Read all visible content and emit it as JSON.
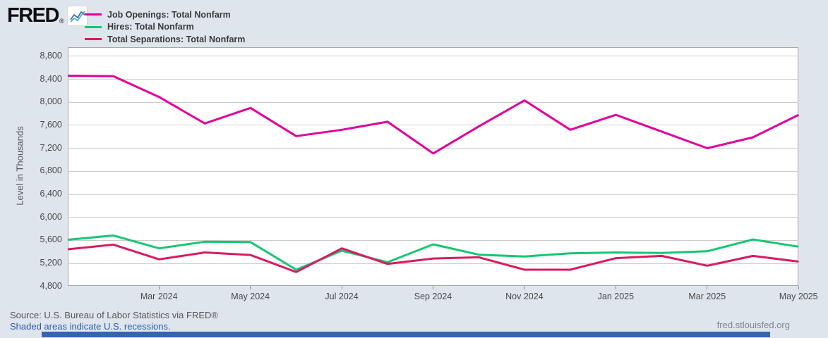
{
  "logo": {
    "text": "FRED",
    "reg": "®"
  },
  "legend": {
    "items": [
      {
        "label": "Job Openings: Total Nonfarm",
        "color": "#e1009c"
      },
      {
        "label": "Hires: Total Nonfarm",
        "color": "#17c671"
      },
      {
        "label": "Total Separations: Total Nonfarm",
        "color": "#d81b60"
      }
    ]
  },
  "y_axis": {
    "title": "Level in Thousands",
    "tick_labels": [
      "8,800",
      "8,400",
      "8,000",
      "7,600",
      "7,200",
      "6,800",
      "6,400",
      "6,000",
      "5,600",
      "5,200",
      "4,800"
    ],
    "tick_values": [
      8800,
      8400,
      8000,
      7600,
      7200,
      6800,
      6400,
      6000,
      5600,
      5200,
      4800
    ]
  },
  "x_axis": {
    "tick_labels": [
      "Mar 2024",
      "May 2024",
      "Jul 2024",
      "Sep 2024",
      "Nov 2024",
      "Jan 2025",
      "Mar 2025",
      "May 2025"
    ],
    "tick_month_indices": [
      2,
      4,
      6,
      8,
      10,
      12,
      14,
      16
    ]
  },
  "footer": {
    "source": "Source: U.S. Bureau of Labor Statistics via FRED®",
    "note": "Shaded areas indicate U.S. recessions.",
    "site": "fred.stlouisfed.org"
  },
  "chart_data": {
    "type": "line",
    "x": [
      "Jan 2024",
      "Feb 2024",
      "Mar 2024",
      "Apr 2024",
      "May 2024",
      "Jun 2024",
      "Jul 2024",
      "Aug 2024",
      "Sep 2024",
      "Oct 2024",
      "Nov 2024",
      "Dec 2024",
      "Jan 2025",
      "Feb 2025",
      "Mar 2025",
      "Apr 2025",
      "May 2025"
    ],
    "series": [
      {
        "name": "Job Openings: Total Nonfarm",
        "color": "#e1009c",
        "values": [
          8460,
          8450,
          8090,
          7630,
          7900,
          7410,
          7520,
          7660,
          7110,
          7580,
          8030,
          7520,
          7780,
          7490,
          7200,
          7390,
          7780
        ]
      },
      {
        "name": "Hires: Total Nonfarm",
        "color": "#17c671",
        "values": [
          5610,
          5685,
          5460,
          5575,
          5570,
          5090,
          5420,
          5220,
          5530,
          5350,
          5320,
          5375,
          5390,
          5380,
          5410,
          5615,
          5490
        ]
      },
      {
        "name": "Total Separations: Total Nonfarm",
        "color": "#d81b60",
        "values": [
          5445,
          5525,
          5270,
          5390,
          5345,
          5050,
          5460,
          5190,
          5285,
          5305,
          5090,
          5090,
          5290,
          5330,
          5160,
          5330,
          5230
        ]
      }
    ],
    "ylabel": "Level in Thousands",
    "ylim": [
      4800,
      8800
    ],
    "ytick_step": 400,
    "grid": "horizontal",
    "legend_position": "top-left",
    "x_range_note": "monthly, Jan 2024 - May 2025"
  }
}
